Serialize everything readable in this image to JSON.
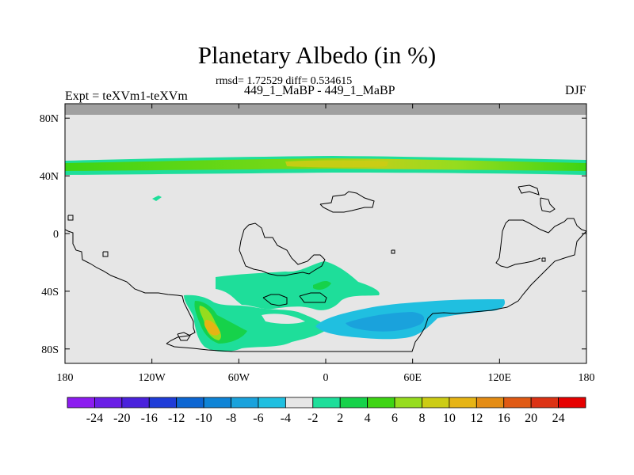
{
  "header": {
    "title": "Planetary Albedo (in %)",
    "stats": "rmsd= 1.72529 diff= 0.534615",
    "case": "449_1_MaBP - 449_1_MaBP",
    "expt": "Expt = teXVm1-teXVm",
    "season": "DJF"
  },
  "chart_data": {
    "type": "heatmap",
    "title": "Planetary Albedo (in %)",
    "xlabel": "",
    "ylabel": "",
    "xlim": [
      -180,
      180
    ],
    "ylim": [
      -90,
      90
    ],
    "x_ticks": [
      {
        "value": -180,
        "label": "180"
      },
      {
        "value": -120,
        "label": "120W"
      },
      {
        "value": -60,
        "label": "60W"
      },
      {
        "value": 0,
        "label": "0"
      },
      {
        "value": 60,
        "label": "60E"
      },
      {
        "value": 120,
        "label": "120E"
      },
      {
        "value": 180,
        "label": "180"
      }
    ],
    "y_ticks": [
      {
        "value": 80,
        "label": "80N"
      },
      {
        "value": 40,
        "label": "40N"
      },
      {
        "value": 0,
        "label": "0"
      },
      {
        "value": -40,
        "label": "40S"
      },
      {
        "value": -80,
        "label": "80S"
      }
    ],
    "background_value_range": [
      -2,
      2
    ],
    "missing_region_lat": [
      82,
      90
    ],
    "features": [
      {
        "name": "northern band",
        "lat_range": [
          43,
          53
        ],
        "lon_range": [
          -180,
          180
        ],
        "value_range": [
          4,
          10
        ],
        "peak_lon": 20,
        "peak_value": 10
      },
      {
        "name": "small patch",
        "lat": 25,
        "lon": -120,
        "value": 3
      },
      {
        "name": "south america plume",
        "lat_range": [
          -80,
          -40
        ],
        "lon_range": [
          -100,
          30
        ],
        "value_range": [
          2,
          12
        ],
        "peak_lat": -68,
        "peak_lon": -80,
        "peak_value": 12
      },
      {
        "name": "south atlantic patch",
        "lat_range": [
          -48,
          -26
        ],
        "lon_range": [
          -80,
          30
        ],
        "value_range": [
          2,
          6
        ]
      },
      {
        "name": "south indian negative",
        "lat_range": [
          -70,
          -45
        ],
        "lon_range": [
          -8,
          125
        ],
        "value_range": [
          -8,
          -2
        ],
        "peak_lat": -60,
        "peak_lon": 45,
        "peak_value": -8
      }
    ],
    "colorbar": {
      "labels": [
        "-24",
        "-20",
        "-16",
        "-12",
        "-10",
        "-8",
        "-6",
        "-4",
        "-2",
        "2",
        "4",
        "6",
        "8",
        "10",
        "12",
        "16",
        "20",
        "24"
      ],
      "colors": [
        "#8c1cf0",
        "#6a1ee6",
        "#4a22dc",
        "#1f3cd8",
        "#0d66d2",
        "#0f84d6",
        "#1aa2dc",
        "#20bfe0",
        "#e6e6e6",
        "#1ede9a",
        "#16d24a",
        "#3ed414",
        "#96dc1e",
        "#cccc14",
        "#e6b414",
        "#e48c14",
        "#e05a14",
        "#dc3214",
        "#e60000"
      ]
    },
    "grid": false,
    "legend": "bottom"
  }
}
